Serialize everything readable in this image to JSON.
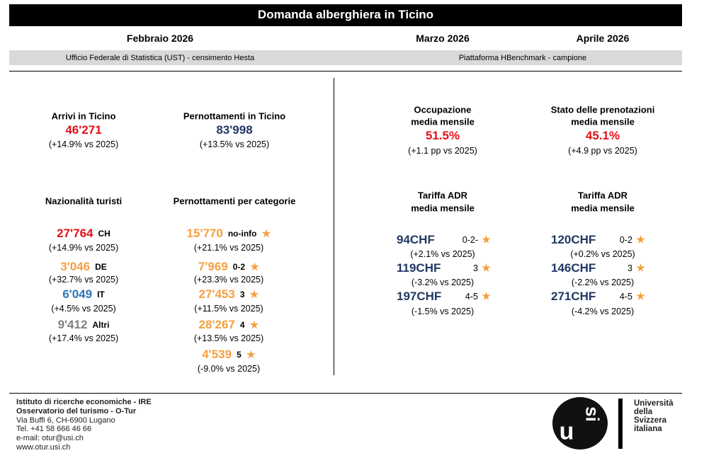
{
  "header": {
    "title": "Domanda alberghiera in Ticino"
  },
  "periods": [
    "Febbraio 2026",
    "Marzo 2026",
    "Aprile 2026"
  ],
  "sources": [
    "Ufficio Federale di Statistica (UST) - censimento Hesta",
    "Piattaforma HBenchmark - campione"
  ],
  "febbraio": {
    "arrivi": {
      "label": "Arrivi in Ticino",
      "value": "46'271",
      "change": "(+14.9% vs 2025)"
    },
    "pernottamenti": {
      "label": "Pernottamenti in Ticino",
      "value": "83'998",
      "change": "(+13.5% vs 2025)"
    },
    "nazionalita": {
      "label": "Nazionalità turisti",
      "rows": [
        {
          "value": "27'764",
          "tag": "CH",
          "change": "(+14.9% vs 2025)"
        },
        {
          "value": "3'046",
          "tag": "DE",
          "change": "(+32.7% vs 2025)"
        },
        {
          "value": "6'049",
          "tag": "IT",
          "change": "(+4.5% vs 2025)"
        },
        {
          "value": "9'412",
          "tag": "Altri",
          "change": "(+17.4% vs 2025)"
        }
      ]
    },
    "categorie": {
      "label": "Pernottamenti per categorie",
      "rows": [
        {
          "value": "15'770",
          "tag": "no-info",
          "change": "(+21.1% vs 2025)"
        },
        {
          "value": "7'969",
          "tag": "0-2",
          "change": "(+23.3% vs 2025)"
        },
        {
          "value": "27'453",
          "tag": "3",
          "change": "(+11.5% vs 2025)"
        },
        {
          "value": "28'267",
          "tag": "4",
          "change": "(+13.5% vs 2025)"
        },
        {
          "value": "4'539",
          "tag": "5",
          "change": "(-9.0% vs 2025)"
        }
      ]
    }
  },
  "marzo": {
    "occupazione": {
      "label": [
        "Occupazione",
        "media mensile"
      ],
      "value": "51.5%",
      "change": "(+1.1 pp vs 2025)"
    },
    "adr": {
      "label": [
        "Tariffa ADR",
        "media mensile"
      ],
      "rows": [
        {
          "value": "94CHF",
          "tag": "0-2-",
          "change": "(+2.1% vs 2025)"
        },
        {
          "value": "119CHF",
          "tag": "3",
          "change": "(-3.2% vs 2025)"
        },
        {
          "value": "197CHF",
          "tag": "4-5",
          "change": "(-1.5% vs 2025)"
        }
      ]
    }
  },
  "aprile": {
    "prenotazioni": {
      "label": [
        "Stato delle prenotazioni",
        "media mensile"
      ],
      "value": "45.1%",
      "change": "(+4.9 pp vs 2025)"
    },
    "adr": {
      "label": [
        "Tariffa ADR",
        "media mensile"
      ],
      "rows": [
        {
          "value": "120CHF",
          "tag": "0-2",
          "change": "(+0.2% vs 2025)"
        },
        {
          "value": "146CHF",
          "tag": "3",
          "change": "(-2.2% vs 2025)"
        },
        {
          "value": "271CHF",
          "tag": "4-5",
          "change": "(-4.2% vs 2025)"
        }
      ]
    }
  },
  "footer": {
    "lines": [
      "Istituto di ricerche economiche - IRE",
      "Osservatorio del turismo - O-Tur",
      "Via Buffi 6, CH-6900 Lugano",
      "Tel. +41 58 666 46 66",
      "e-mail: otur@usi.ch",
      "www.otur.usi.ch"
    ]
  },
  "logo": {
    "mark": [
      "u",
      "si"
    ],
    "name": [
      "Università",
      "della",
      "Svizzera",
      "italiana"
    ]
  }
}
